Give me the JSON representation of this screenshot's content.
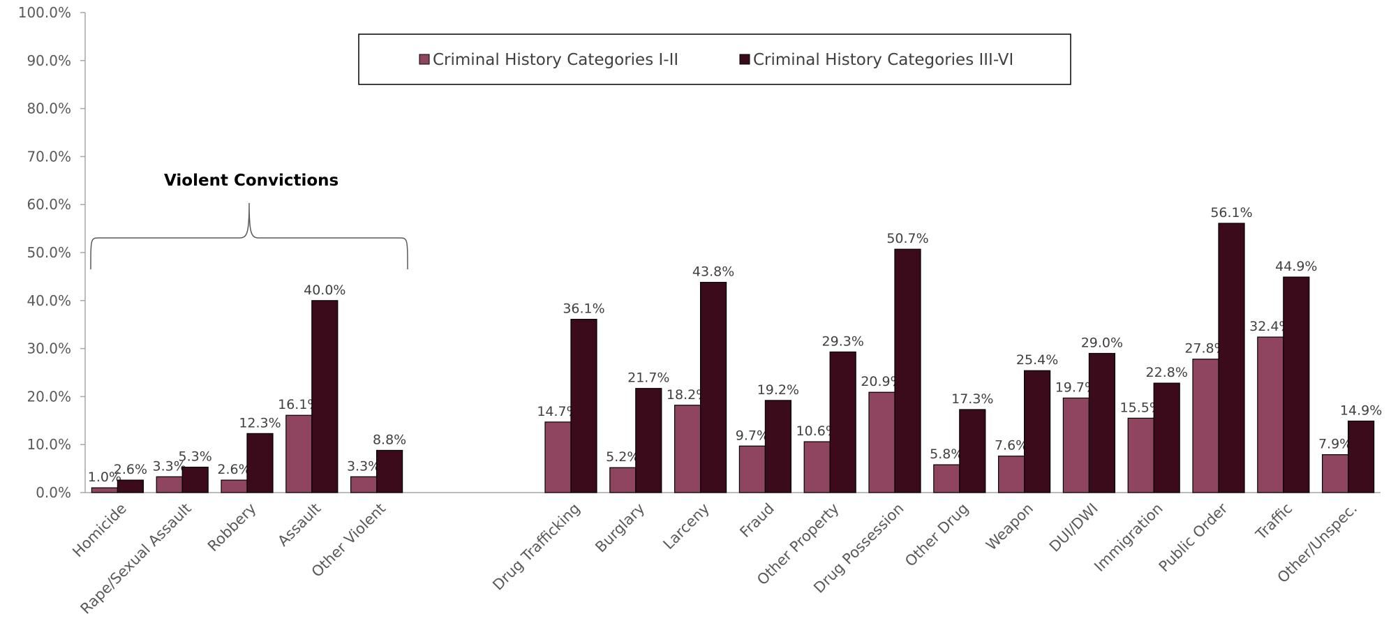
{
  "chart_data": {
    "type": "bar",
    "categories": [
      "Homicide",
      "Rape/Sexual Assault",
      "Robbery",
      "Assault",
      "Other Violent",
      "",
      "",
      "Drug Trafficking",
      "Burglary",
      "Larceny",
      "Fraud",
      "Other Property",
      "Drug Possession",
      "Other Drug",
      "Weapon",
      "DUI/DWI",
      "Immigration",
      "Public Order",
      "Traffic",
      "Other/Unspec."
    ],
    "series": [
      {
        "name": "Criminal History Categories I-II",
        "color": "#8f4560",
        "values": [
          1.0,
          3.3,
          2.6,
          16.1,
          3.3,
          null,
          null,
          14.7,
          5.2,
          18.2,
          9.7,
          10.6,
          20.9,
          5.8,
          7.6,
          19.7,
          15.5,
          27.8,
          32.4,
          7.9
        ],
        "labels": [
          "1.0%",
          "3.3%",
          "2.6%",
          "16.1%",
          "3.3%",
          "",
          "",
          "14.7%",
          "5.2%",
          "18.2%",
          "9.7%",
          "10.6%",
          "20.9%",
          "5.8%",
          "7.6%",
          "19.7%",
          "15.5%",
          "27.8%",
          "32.4%",
          "7.9%"
        ]
      },
      {
        "name": "Criminal History Categories III-VI",
        "color": "#3b0a1b",
        "values": [
          2.6,
          5.3,
          12.3,
          40.0,
          8.8,
          null,
          null,
          36.1,
          21.7,
          43.8,
          19.2,
          29.3,
          50.7,
          17.3,
          25.4,
          29.0,
          22.8,
          56.1,
          44.9,
          14.9
        ],
        "labels": [
          "2.6%",
          "5.3%",
          "12.3%",
          "40.0%",
          "8.8%",
          "",
          "",
          "36.1%",
          "21.7%",
          "43.8%",
          "19.2%",
          "29.3%",
          "50.7%",
          "17.3%",
          "25.4%",
          "29.0%",
          "22.8%",
          "56.1%",
          "44.9%",
          "14.9%"
        ]
      }
    ],
    "ylim": [
      0,
      100
    ],
    "yticks": [
      "0.0%",
      "10.0%",
      "20.0%",
      "30.0%",
      "40.0%",
      "50.0%",
      "60.0%",
      "70.0%",
      "80.0%",
      "90.0%",
      "100.0%"
    ],
    "grid": false,
    "legend_position": "top-center",
    "annotation": {
      "text": "Violent Convictions",
      "span_from": "Homicide",
      "span_to": "Other Violent"
    },
    "title": "",
    "xlabel": "",
    "ylabel": ""
  }
}
